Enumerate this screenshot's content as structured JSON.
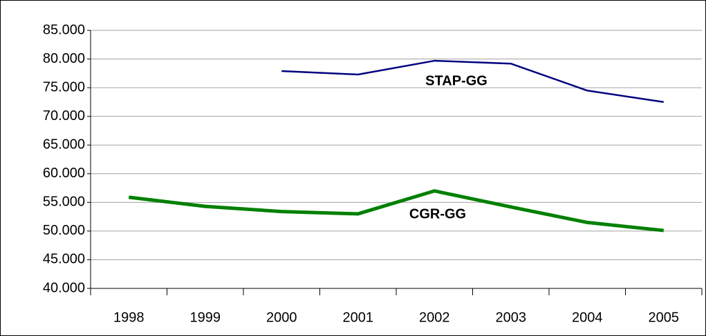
{
  "chart_data": {
    "type": "line",
    "categories": [
      "1998",
      "1999",
      "2000",
      "2001",
      "2002",
      "2003",
      "2004",
      "2005"
    ],
    "series": [
      {
        "name": "STAP-GG",
        "color": "#000080",
        "values": [
          null,
          null,
          77900,
          77300,
          79700,
          79200,
          74500,
          72500
        ]
      },
      {
        "name": "CGR-GG",
        "color": "#008000",
        "values": [
          55900,
          54300,
          53400,
          53000,
          57000,
          54200,
          51500,
          50100
        ]
      }
    ],
    "ylim": [
      40000,
      85000
    ],
    "yticks": [
      {
        "value": 40000,
        "label": "40.000"
      },
      {
        "value": 45000,
        "label": "45.000"
      },
      {
        "value": 50000,
        "label": "50.000"
      },
      {
        "value": 55000,
        "label": "55.000"
      },
      {
        "value": 60000,
        "label": "60.000"
      },
      {
        "value": 65000,
        "label": "65.000"
      },
      {
        "value": 70000,
        "label": "70.000"
      },
      {
        "value": 75000,
        "label": "75.000"
      },
      {
        "value": 80000,
        "label": "80.000"
      },
      {
        "value": 85000,
        "label": "85.000"
      }
    ],
    "grid": true,
    "annotations": [
      "STAP-GG",
      "CGR-GG"
    ]
  }
}
